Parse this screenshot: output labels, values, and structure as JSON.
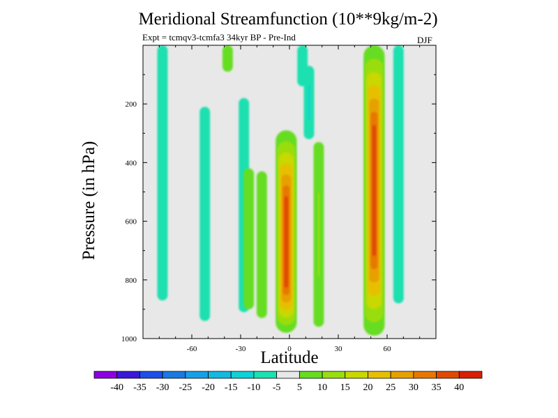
{
  "chart_data": {
    "type": "heatmap",
    "title": "Meridional Streamfunction (10**9kg/m-2)",
    "subtitle": "Expt = tcmqv3-tcmfa3    34kyr BP - Pre-Ind",
    "season": "DJF",
    "xlabel": "Latitude",
    "ylabel": "Pressure (in hPa)",
    "xlim": [
      -90,
      90
    ],
    "ylim": [
      1000,
      0
    ],
    "x_ticks": [
      -60,
      -30,
      0,
      30,
      60
    ],
    "x_tick_labels": [
      "-60",
      "-30",
      "0",
      "30",
      "60"
    ],
    "y_ticks": [
      200,
      400,
      600,
      800,
      1000
    ],
    "y_tick_labels": [
      "200",
      "400",
      "600",
      "800",
      "1000"
    ],
    "colorbar": {
      "levels": [
        -40,
        -35,
        -30,
        -25,
        -20,
        -15,
        -10,
        -5,
        5,
        10,
        15,
        20,
        25,
        30,
        35,
        40
      ],
      "labels": [
        "-40",
        "-35",
        "-30",
        "-25",
        "-20",
        "-15",
        "-10",
        "-5",
        "5",
        "10",
        "15",
        "20",
        "25",
        "30",
        "35",
        "40"
      ],
      "colors": [
        "#8a00e0",
        "#3a18d8",
        "#1f4ee8",
        "#1a7ae0",
        "#1a9fe6",
        "#14b8e0",
        "#10d0d8",
        "#1ce0b0",
        "#e8e8e8",
        "#66dd22",
        "#99dd11",
        "#c8d800",
        "#e6c000",
        "#e6a000",
        "#e67800",
        "#e04a00",
        "#d82000"
      ]
    },
    "background_color": "#e8e8e8",
    "anomaly_features": [
      {
        "lat": -78,
        "p_top": 0,
        "p_bottom": 870,
        "value": -7,
        "kind": "negative"
      },
      {
        "lat": -52,
        "p_top": 210,
        "p_bottom": 940,
        "value": -7,
        "kind": "negative"
      },
      {
        "lat": -38,
        "p_top": 0,
        "p_bottom": 90,
        "value": 7,
        "kind": "positive"
      },
      {
        "lat": -28,
        "p_top": 180,
        "p_bottom": 910,
        "value": -7,
        "kind": "negative"
      },
      {
        "lat": -25,
        "p_top": 420,
        "p_bottom": 900,
        "value": 7,
        "kind": "positive"
      },
      {
        "lat": -17,
        "p_top": 430,
        "p_bottom": 930,
        "value": 7,
        "kind": "positive"
      },
      {
        "lat": -2,
        "p_top": 290,
        "p_bottom": 980,
        "value": 38,
        "kind": "positive",
        "peak_p": 700
      },
      {
        "lat": 8,
        "p_top": 0,
        "p_bottom": 140,
        "value": -7,
        "kind": "negative"
      },
      {
        "lat": 12,
        "p_top": 70,
        "p_bottom": 320,
        "value": -15,
        "kind": "negative"
      },
      {
        "lat": 18,
        "p_top": 330,
        "p_bottom": 960,
        "value": 12,
        "kind": "positive"
      },
      {
        "lat": 52,
        "p_top": 0,
        "p_bottom": 990,
        "value": 38,
        "kind": "positive"
      },
      {
        "lat": 67,
        "p_top": 0,
        "p_bottom": 880,
        "value": -7,
        "kind": "negative"
      }
    ]
  }
}
